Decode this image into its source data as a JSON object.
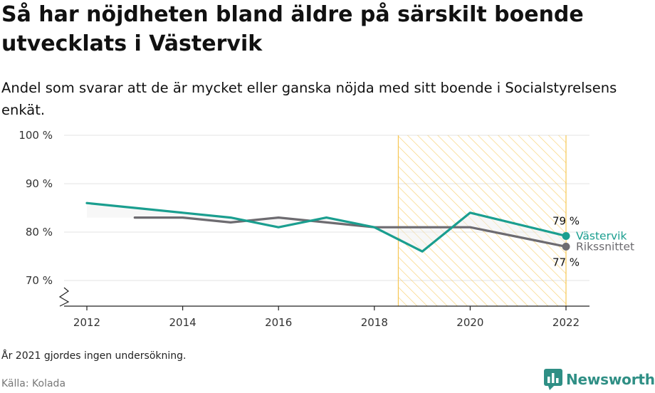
{
  "header": {
    "title": "Så har nöjdheten bland äldre på särskilt boende utvecklats i Västervik",
    "subtitle": "Andel som svarar att de är mycket eller ganska nöjda med sitt boende i Socialstyrelsens enkät."
  },
  "chart_data": {
    "type": "line",
    "x_ticks": [
      2012,
      2014,
      2016,
      2018,
      2020,
      2022
    ],
    "x_range": [
      2011.4,
      2022.5
    ],
    "y_ticks": [
      {
        "value": 70,
        "label": "70 %"
      },
      {
        "value": 80,
        "label": "80 %"
      },
      {
        "value": 90,
        "label": "90 %"
      },
      {
        "value": 100,
        "label": "100 %"
      }
    ],
    "y_range": [
      65,
      100
    ],
    "y_axis_broken": true,
    "grid": true,
    "highlight_range": [
      2018.5,
      2022
    ],
    "series": [
      {
        "name": "Västervik",
        "color": "#1a9e8f",
        "end_label": "79 %",
        "points": [
          {
            "x": 2012,
            "y": 86
          },
          {
            "x": 2013,
            "y": 85
          },
          {
            "x": 2014,
            "y": 84
          },
          {
            "x": 2015,
            "y": 83
          },
          {
            "x": 2016,
            "y": 81
          },
          {
            "x": 2017,
            "y": 83
          },
          {
            "x": 2018,
            "y": 81
          },
          {
            "x": 2019,
            "y": 76
          },
          {
            "x": 2020,
            "y": 84
          },
          {
            "x": 2022,
            "y": 79.2
          }
        ]
      },
      {
        "name": "Rikssnittet",
        "color": "#6d6b70",
        "end_label": "77 %",
        "points": [
          {
            "x": 2013,
            "y": 83
          },
          {
            "x": 2014,
            "y": 83
          },
          {
            "x": 2015,
            "y": 82
          },
          {
            "x": 2016,
            "y": 83
          },
          {
            "x": 2017,
            "y": 82
          },
          {
            "x": 2018,
            "y": 81
          },
          {
            "x": 2019,
            "y": 81
          },
          {
            "x": 2020,
            "y": 81
          },
          {
            "x": 2022,
            "y": 77
          }
        ]
      }
    ],
    "highlight_color": "#f6c143"
  },
  "footer": {
    "note": "År 2021 gjordes ingen undersökning.",
    "source": "Källa: Kolada",
    "brand": "Newsworthy",
    "brand_color": "#2f8f85"
  }
}
